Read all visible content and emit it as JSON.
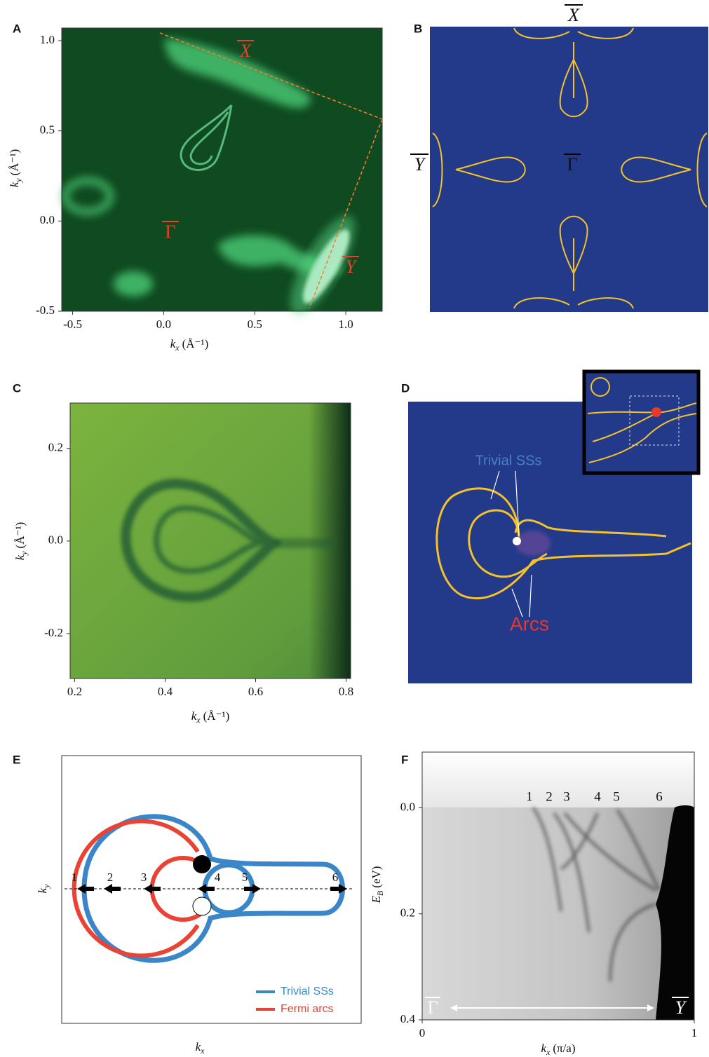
{
  "figure": {
    "panels": [
      {
        "label": "A",
        "xlim": [
          -0.56,
          1.2
        ],
        "ylim": [
          -0.5,
          1.07
        ],
        "xticks": [
          -0.5,
          {
            "value": 0,
            "label": "0.0"
          },
          0.5,
          {
            "value": 1,
            "label": "1.0"
          }
        ],
        "yticks": [
          {
            "value": 1,
            "label": "1.0"
          },
          0.5,
          {
            "value": 0,
            "label": "0.0"
          },
          -0.5
        ],
        "x_label": {
          "symbol": "k",
          "sub": "x",
          "unit": "(Å⁻¹)"
        },
        "y_label": {
          "symbol": "k",
          "sub": "y",
          "unit": "(Å⁻¹)"
        },
        "annotations": [
          "X",
          "Γ",
          "Y"
        ]
      },
      {
        "label": "B",
        "annotations": [
          "X",
          "Y",
          "Γ"
        ]
      },
      {
        "label": "C",
        "xlim": [
          0.19,
          0.81
        ],
        "ylim": [
          -0.297,
          0.298
        ],
        "xticks": [
          0.2,
          0.4,
          0.6,
          0.8
        ],
        "yticks": [
          0.2,
          {
            "value": 0,
            "label": "0.0"
          },
          -0.2
        ],
        "x_label": {
          "symbol": "k",
          "sub": "x",
          "unit": "(Å⁻¹)"
        },
        "y_label": {
          "symbol": "k",
          "sub": "y",
          "unit": "(Å⁻¹)"
        }
      },
      {
        "label": "D",
        "annotations": [
          "Trivial SSs",
          "Arcs"
        ]
      },
      {
        "label": "E",
        "x_label": {
          "symbol": "k",
          "sub": "x"
        },
        "y_label": {
          "symbol": "k",
          "sub": "y"
        },
        "annotations": [
          "1",
          "2",
          "3",
          "4",
          "5",
          "6"
        ],
        "legend": [
          "Trivial SSs",
          "Fermi arcs"
        ]
      },
      {
        "label": "F",
        "xlim": [
          0,
          1
        ],
        "ylim": [
          0.4,
          -0.105
        ],
        "xticks": [
          0,
          1
        ],
        "yticks": [
          {
            "value": 0,
            "label": "0.0"
          },
          0.2,
          0.4
        ],
        "x_label": {
          "symbol": "k",
          "sub": "x",
          "unit": "(π/a)"
        },
        "y_label": {
          "symbol": "E",
          "sub": "B",
          "unit": "(eV)"
        },
        "annotations": [
          "1",
          "2",
          "3",
          "4",
          "5",
          "6",
          "Γ",
          "Y"
        ]
      }
    ]
  }
}
